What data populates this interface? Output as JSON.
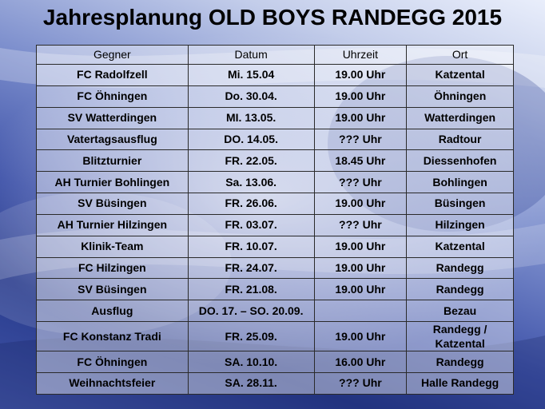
{
  "title": "Jahresplanung OLD BOYS RANDEGG 2015",
  "colors": {
    "background_dark": "#273a8c",
    "background_light": "#e9eefb",
    "grid": "#2a2a2a"
  },
  "table": {
    "headers": [
      "Gegner",
      "Datum",
      "Uhrzeit",
      "Ort"
    ],
    "rows": [
      [
        "FC Radolfzell",
        "Mi. 15.04",
        "19.00 Uhr",
        "Katzental"
      ],
      [
        "FC Öhningen",
        "Do. 30.04.",
        "19.00 Uhr",
        "Öhningen"
      ],
      [
        "SV Watterdingen",
        "MI. 13.05.",
        "19.00 Uhr",
        "Watterdingen"
      ],
      [
        "Vatertagsausflug",
        "DO. 14.05.",
        "??? Uhr",
        "Radtour"
      ],
      [
        "Blitzturnier",
        "FR. 22.05.",
        "18.45 Uhr",
        "Diessenhofen"
      ],
      [
        "AH Turnier Bohlingen",
        "Sa. 13.06.",
        "??? Uhr",
        "Bohlingen"
      ],
      [
        "SV Büsingen",
        "FR. 26.06.",
        "19.00 Uhr",
        "Büsingen"
      ],
      [
        "AH Turnier Hilzingen",
        "FR. 03.07.",
        "??? Uhr",
        "Hilzingen"
      ],
      [
        "Klinik-Team",
        "FR. 10.07.",
        "19.00 Uhr",
        "Katzental"
      ],
      [
        "FC Hilzingen",
        "FR. 24.07.",
        "19.00 Uhr",
        "Randegg"
      ],
      [
        "SV Büsingen",
        "FR. 21.08.",
        "19.00 Uhr",
        "Randegg"
      ],
      [
        "Ausflug",
        "DO. 17. – SO. 20.09.",
        "",
        "Bezau"
      ],
      [
        "FC Konstanz Tradi",
        "FR. 25.09.",
        "19.00 Uhr",
        "Randegg / Katzental"
      ],
      [
        "FC Öhningen",
        "SA. 10.10.",
        "16.00 Uhr",
        "Randegg"
      ],
      [
        "Weihnachtsfeier",
        "SA. 28.11.",
        "??? Uhr",
        "Halle Randegg"
      ]
    ]
  }
}
